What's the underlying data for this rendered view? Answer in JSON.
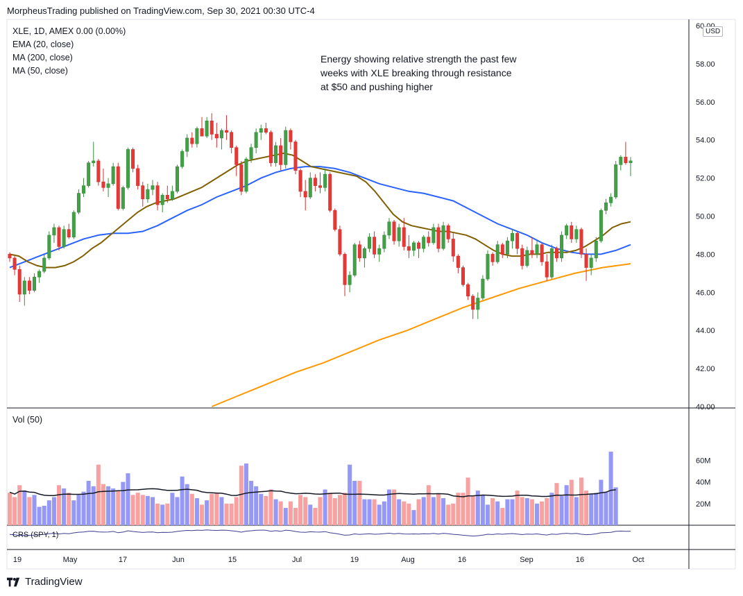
{
  "header": {
    "publisher_line": "MorpheusTrading published on TradingView.com, Sep 30, 2021 00:30 UTC-4"
  },
  "legend": {
    "symbol_line": "XLE, 1D, AMEX  0.00 (0.00%)",
    "ema": "EMA (20, close)",
    "ma200": "MA (200, close)",
    "ma50": "MA (50, close)"
  },
  "annotation": "Energy showing relative strength the past few\nweeks with XLE breaking through resistance\nat $50 and pushing higher",
  "currency": "USD",
  "volume_label": "Vol (50)",
  "crs_label": "CRS (SPY, 1)",
  "footer": {
    "brand": "TradingView"
  },
  "colors": {
    "up": "#26a69a",
    "up_fill": "#4caf50",
    "down": "#ef5350",
    "ema": "#806000",
    "ma50": "#2962ff",
    "ma200": "#ff9800",
    "vol_up": "#9598f5",
    "vol_down": "#f7a1a1",
    "vol_ma": "#131722",
    "crs": "#3d3d8f"
  },
  "chart_data": {
    "type": "candlestick",
    "title": "XLE, 1D, AMEX",
    "price_axis": {
      "ticks": [
        "60.00",
        "58.00",
        "56.00",
        "54.00",
        "52.00",
        "50.00",
        "48.00",
        "46.00",
        "44.00",
        "42.00",
        "40.00"
      ],
      "ylim": [
        40,
        60
      ]
    },
    "volume_axis": {
      "ticks": [
        "60M",
        "40M",
        "20M"
      ]
    },
    "x_ticks": [
      "19",
      "May",
      "17",
      "Jun",
      "15",
      "Jul",
      "19",
      "Aug",
      "16",
      "Sep",
      "16",
      "Oct"
    ],
    "candles": [
      [
        48.0,
        48.1,
        47.6,
        47.8
      ],
      [
        47.8,
        47.9,
        46.9,
        47.2
      ],
      [
        47.2,
        47.4,
        45.5,
        45.9
      ],
      [
        45.9,
        46.8,
        45.3,
        46.6
      ],
      [
        46.6,
        46.8,
        45.9,
        46.1
      ],
      [
        46.1,
        47.0,
        46.0,
        46.8
      ],
      [
        46.8,
        47.2,
        46.5,
        47.1
      ],
      [
        47.1,
        48.0,
        47.0,
        47.8
      ],
      [
        47.8,
        49.2,
        47.7,
        49.0
      ],
      [
        49.0,
        49.6,
        48.6,
        49.4
      ],
      [
        49.4,
        49.5,
        48.2,
        48.4
      ],
      [
        48.4,
        49.5,
        48.3,
        49.3
      ],
      [
        49.3,
        49.6,
        48.8,
        48.9
      ],
      [
        48.9,
        50.3,
        48.8,
        50.2
      ],
      [
        50.2,
        51.4,
        50.1,
        51.2
      ],
      [
        51.2,
        52.0,
        51.0,
        51.6
      ],
      [
        51.6,
        52.9,
        51.5,
        52.8
      ],
      [
        52.8,
        53.9,
        52.6,
        52.9
      ],
      [
        52.9,
        53.0,
        51.6,
        51.8
      ],
      [
        51.8,
        52.5,
        51.3,
        51.5
      ],
      [
        51.5,
        52.0,
        51.0,
        51.7
      ],
      [
        51.7,
        52.8,
        51.6,
        52.6
      ],
      [
        52.6,
        52.8,
        50.3,
        50.4
      ],
      [
        50.4,
        51.6,
        50.3,
        51.5
      ],
      [
        51.5,
        53.6,
        51.4,
        53.5
      ],
      [
        53.5,
        53.6,
        52.3,
        52.5
      ],
      [
        52.5,
        52.7,
        51.4,
        51.6
      ],
      [
        51.6,
        51.8,
        50.5,
        50.9
      ],
      [
        50.9,
        51.7,
        50.7,
        51.4
      ],
      [
        51.4,
        51.9,
        51.1,
        51.6
      ],
      [
        51.6,
        51.8,
        50.3,
        50.6
      ],
      [
        50.6,
        51.2,
        50.2,
        51.1
      ],
      [
        51.1,
        51.6,
        50.7,
        50.9
      ],
      [
        50.9,
        51.6,
        50.8,
        51.3
      ],
      [
        51.3,
        52.7,
        51.2,
        52.6
      ],
      [
        52.6,
        53.5,
        52.5,
        53.4
      ],
      [
        53.4,
        54.3,
        53.1,
        54.1
      ],
      [
        54.1,
        54.4,
        53.6,
        53.8
      ],
      [
        53.8,
        54.7,
        53.6,
        54.6
      ],
      [
        54.6,
        55.2,
        54.2,
        54.2
      ],
      [
        54.2,
        55.2,
        54.1,
        55.0
      ],
      [
        55.0,
        55.4,
        54.0,
        54.3
      ],
      [
        54.3,
        54.9,
        53.6,
        54.1
      ],
      [
        54.1,
        54.6,
        53.5,
        54.5
      ],
      [
        54.5,
        55.3,
        54.0,
        54.4
      ],
      [
        54.4,
        54.5,
        53.3,
        53.6
      ],
      [
        53.6,
        53.7,
        52.1,
        52.7
      ],
      [
        52.7,
        52.9,
        51.1,
        51.3
      ],
      [
        51.3,
        53.1,
        51.2,
        53.0
      ],
      [
        53.0,
        53.8,
        52.8,
        53.6
      ],
      [
        53.6,
        54.6,
        53.3,
        54.4
      ],
      [
        54.4,
        54.8,
        54.0,
        54.6
      ],
      [
        54.6,
        54.9,
        54.3,
        54.4
      ],
      [
        54.4,
        54.5,
        52.6,
        52.8
      ],
      [
        52.8,
        53.9,
        52.6,
        53.7
      ],
      [
        53.7,
        54.1,
        52.4,
        52.7
      ],
      [
        52.7,
        54.7,
        52.5,
        54.5
      ],
      [
        54.5,
        54.6,
        53.5,
        53.9
      ],
      [
        53.9,
        54.0,
        52.2,
        52.4
      ],
      [
        52.4,
        52.5,
        51.0,
        51.3
      ],
      [
        51.3,
        51.9,
        50.3,
        51.0
      ],
      [
        51.0,
        52.3,
        50.9,
        52.0
      ],
      [
        52.0,
        52.2,
        51.3,
        51.6
      ],
      [
        51.6,
        52.3,
        51.2,
        51.5
      ],
      [
        51.5,
        52.5,
        51.3,
        52.2
      ],
      [
        52.2,
        52.3,
        50.2,
        50.3
      ],
      [
        50.3,
        50.4,
        49.2,
        49.3
      ],
      [
        49.3,
        49.5,
        47.9,
        48.0
      ],
      [
        48.0,
        48.1,
        45.8,
        46.4
      ],
      [
        46.4,
        47.1,
        46.0,
        46.9
      ],
      [
        46.9,
        48.6,
        46.8,
        48.5
      ],
      [
        48.5,
        48.7,
        47.6,
        47.8
      ],
      [
        47.8,
        48.4,
        47.3,
        48.3
      ],
      [
        48.3,
        49.1,
        48.1,
        48.9
      ],
      [
        48.9,
        49.2,
        47.8,
        48.0
      ],
      [
        48.0,
        48.5,
        47.6,
        48.3
      ],
      [
        48.3,
        49.2,
        48.1,
        49.0
      ],
      [
        49.0,
        49.9,
        48.8,
        49.7
      ],
      [
        49.7,
        49.8,
        48.5,
        48.7
      ],
      [
        48.7,
        49.6,
        48.4,
        49.4
      ],
      [
        49.4,
        49.9,
        48.2,
        48.4
      ],
      [
        48.4,
        49.0,
        47.8,
        48.2
      ],
      [
        48.2,
        48.7,
        47.9,
        48.6
      ],
      [
        48.6,
        48.7,
        47.8,
        48.3
      ],
      [
        48.3,
        49.0,
        48.1,
        48.9
      ],
      [
        48.9,
        49.2,
        48.4,
        48.6
      ],
      [
        48.6,
        49.6,
        48.5,
        49.4
      ],
      [
        49.4,
        49.6,
        48.1,
        48.3
      ],
      [
        48.3,
        49.7,
        48.2,
        49.5
      ],
      [
        49.5,
        49.6,
        48.6,
        48.8
      ],
      [
        48.8,
        49.1,
        47.6,
        47.9
      ],
      [
        47.9,
        48.0,
        47.0,
        47.3
      ],
      [
        47.3,
        47.4,
        46.3,
        46.4
      ],
      [
        46.4,
        46.5,
        45.6,
        45.8
      ],
      [
        45.8,
        45.9,
        44.6,
        45.1
      ],
      [
        45.1,
        46.0,
        44.6,
        45.7
      ],
      [
        45.7,
        46.9,
        45.6,
        46.7
      ],
      [
        46.7,
        48.2,
        46.6,
        48.0
      ],
      [
        48.0,
        48.1,
        47.4,
        47.6
      ],
      [
        47.6,
        48.7,
        47.5,
        48.5
      ],
      [
        48.5,
        48.6,
        47.8,
        48.0
      ],
      [
        48.0,
        48.9,
        47.8,
        48.7
      ],
      [
        48.7,
        49.3,
        48.3,
        49.1
      ],
      [
        49.1,
        49.2,
        48.0,
        48.3
      ],
      [
        48.3,
        48.5,
        47.2,
        47.4
      ],
      [
        47.4,
        48.4,
        47.3,
        48.2
      ],
      [
        48.2,
        48.9,
        47.8,
        48.0
      ],
      [
        48.0,
        48.7,
        47.8,
        48.5
      ],
      [
        48.5,
        48.6,
        47.4,
        47.6
      ],
      [
        47.6,
        48.0,
        46.6,
        46.8
      ],
      [
        46.8,
        48.5,
        46.7,
        48.3
      ],
      [
        48.3,
        48.4,
        47.6,
        47.8
      ],
      [
        47.8,
        49.2,
        47.6,
        49.0
      ],
      [
        49.0,
        49.6,
        48.8,
        49.5
      ],
      [
        49.5,
        49.7,
        48.6,
        48.8
      ],
      [
        48.8,
        49.5,
        48.6,
        49.3
      ],
      [
        49.3,
        49.4,
        47.8,
        48.0
      ],
      [
        48.0,
        48.3,
        46.6,
        47.3
      ],
      [
        47.3,
        48.0,
        46.9,
        47.8
      ],
      [
        47.8,
        48.9,
        47.6,
        48.7
      ],
      [
        48.7,
        50.4,
        48.6,
        50.3
      ],
      [
        50.3,
        50.9,
        50.1,
        50.7
      ],
      [
        50.7,
        51.2,
        50.5,
        51.0
      ],
      [
        51.0,
        52.9,
        50.9,
        52.7
      ],
      [
        52.7,
        53.2,
        52.4,
        53.1
      ],
      [
        53.1,
        53.9,
        52.7,
        52.8
      ],
      [
        52.8,
        53.1,
        52.1,
        52.9
      ]
    ],
    "volume_millions": [
      30,
      26,
      37,
      32,
      26,
      28,
      17,
      18,
      23,
      26,
      37,
      34,
      30,
      23,
      28,
      31,
      41,
      36,
      56,
      38,
      36,
      34,
      32,
      40,
      48,
      28,
      30,
      28,
      27,
      26,
      20,
      19,
      20,
      30,
      26,
      45,
      38,
      29,
      25,
      19,
      23,
      29,
      30,
      26,
      20,
      20,
      26,
      55,
      57,
      41,
      36,
      29,
      27,
      33,
      24,
      22,
      16,
      22,
      16,
      28,
      26,
      19,
      16,
      26,
      33,
      30,
      25,
      28,
      30,
      56,
      41,
      41,
      24,
      24,
      24,
      19,
      22,
      33,
      33,
      24,
      22,
      20,
      14,
      24,
      26,
      37,
      26,
      29,
      25,
      19,
      20,
      30,
      30,
      44,
      27,
      32,
      28,
      19,
      25,
      22,
      16,
      24,
      24,
      32,
      26,
      25,
      24,
      20,
      22,
      25,
      30,
      39,
      27,
      37,
      42,
      26,
      44,
      32,
      29,
      30,
      42,
      31,
      68,
      35
    ],
    "series": [
      {
        "name": "EMA (20, close)",
        "values": [
          48.0,
          47.9,
          47.6,
          47.4,
          47.3,
          47.3,
          47.4,
          47.6,
          47.9,
          48.3,
          48.6,
          49.0,
          49.4,
          49.8,
          50.2,
          50.5,
          50.7,
          50.8,
          50.9,
          51.1,
          51.3,
          51.5,
          51.8,
          52.1,
          52.4,
          52.7,
          52.9,
          53.0,
          53.1,
          53.2,
          53.3,
          53.2,
          52.9,
          52.6,
          52.5,
          52.4,
          52.3,
          52.2,
          52.1,
          51.8,
          51.3,
          50.7,
          50.1,
          49.7,
          49.5,
          49.4,
          49.3,
          49.2,
          49.2,
          49.1,
          49.0,
          48.8,
          48.5,
          48.2,
          48.0,
          47.9,
          47.9,
          48.0,
          48.0,
          48.1,
          48.1,
          48.1,
          48.2,
          48.4,
          48.7,
          49.0,
          49.4,
          49.6,
          49.7
        ]
      },
      {
        "name": "MA (50, close)",
        "values": [
          47.3,
          47.6,
          47.9,
          48.2,
          48.5,
          48.8,
          49.0,
          49.1,
          49.1,
          49.2,
          49.5,
          49.9,
          50.3,
          50.6,
          51.0,
          51.3,
          51.6,
          52.0,
          52.3,
          52.5,
          52.6,
          52.6,
          52.5,
          52.3,
          52.0,
          51.7,
          51.5,
          51.3,
          51.2,
          51.0,
          50.8,
          50.4,
          50.0,
          49.6,
          49.3,
          49.0,
          48.6,
          48.3,
          48.1,
          48.0,
          48.0,
          48.2,
          48.5
        ]
      },
      {
        "name": "MA (200, close)",
        "values": [
          40.0,
          40.6,
          41.2,
          41.8,
          42.3,
          42.9,
          43.5,
          44.0,
          44.6,
          45.2,
          45.7,
          46.2,
          46.6,
          47.0,
          47.3,
          47.5
        ]
      }
    ]
  }
}
